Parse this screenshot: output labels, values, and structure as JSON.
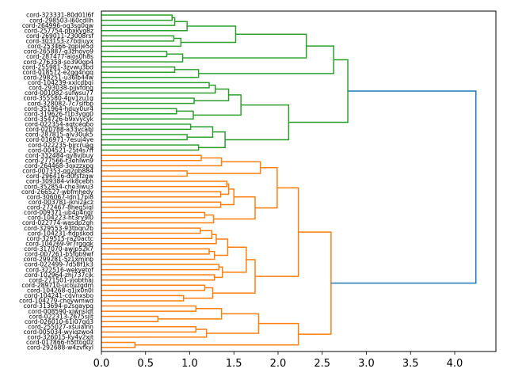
{
  "chart_data": {
    "type": "dendrogram",
    "orientation": "left",
    "title": "",
    "xlabel": "",
    "ylabel": "",
    "xlim": [
      0,
      4.47
    ],
    "x_ticks": [
      "0.0",
      "0.5",
      "1.0",
      "1.5",
      "2.0",
      "2.5",
      "3.0",
      "3.5",
      "4.0"
    ],
    "x_tick_values": [
      0,
      0.5,
      1.0,
      1.5,
      2.0,
      2.5,
      3.0,
      3.5,
      4.0
    ],
    "colors": {
      "above_threshold": "#1f77b4",
      "cluster_1": "#2ca02c",
      "cluster_2": "#ff7f0e"
    },
    "leaves": [
      "cord-323331-80d01l6f",
      "cord-298503-l60cdllh",
      "cord-264996-og3sg0qw",
      "cord-257754-pbxkyg8z",
      "cord-269011-23008rsf",
      "cord-303153-z7bdiuyx",
      "cord-253466-zgpije5d",
      "cord-265887-g3zhoyo9",
      "cord-287477-aios0h8s",
      "cord-276358-so390gp4",
      "cord-255981-3zvwu3bd",
      "cord-018572-e2gg4ngq",
      "cord-298251-u36lb44w",
      "cord-104239-xxlcdbqi",
      "cord-293038-pijvfdng",
      "cord-001082-sufwsu77",
      "cord-355580-4pv1zu1g",
      "cord-328082-7c7slfbp",
      "cord-351964-hduy0ur4",
      "cord-319626-f1b3ygg0",
      "cord-354726-b9xvycyk",
      "cord-022354-aqtceqbo",
      "cord-020788-a33vcabl",
      "cord-287815-alv30uk5",
      "cord-016971-7esuj4ye",
      "cord-022235-bircruag",
      "cord-004521-25t4s7ff",
      "cord-332484-qy8vjbuy",
      "cord-277566-t3ehlwn9",
      "cord-264468-3oxzzxpq",
      "cord-007353-qg2pb884",
      "cord-296416-d0fsfzgw",
      "cord-309384-vlk8cebh",
      "cord-352854-che3iwu3",
      "cord-266527-wbfmhedy",
      "cord-306067-ldn17pi8",
      "cord-003781-jkni2acz",
      "cord-272467-8heg5iql",
      "cord-009371-ub4p4ngr",
      "cord-104223-ht3ry9l0",
      "cord-022774-wasdp2gh",
      "cord-329553-93tbqn2b",
      "cord-104231-fidpskod",
      "cord-329515-ra20actc",
      "cord-104269-9r7rgqqk",
      "cord-317070-awjp52k7",
      "cord-007261-b5fgb9wf",
      "cord-299281-5z1xminb",
      "cord-022499-7d58f1k3",
      "cord-322516-wekyetof",
      "cord-102964-zhj737cjk",
      "cord-271501-yjobthaj",
      "cord-289710-ucouzgdm",
      "cord-104268-q1jx0n0l",
      "cord-104241-cqvnxsbo",
      "cord-104279-choywmwd",
      "cord-313694-p2sgaypq",
      "cord-008590-xjwnsldt",
      "cord-022313-2675sjlt",
      "cord-026010-61j07gq3",
      "cord-255027-xsuialnn",
      "cord-005034-wyiqzwo4",
      "cord-326015-ky4y2xjt",
      "cord-017866-h5ttog0z",
      "cord-292688-w4zvfkyl"
    ],
    "tree": {
      "h": 4.24,
      "color": "above_threshold",
      "c": [
        {
          "h": 2.79,
          "color": "cluster_1",
          "c": [
            {
              "h": 2.63,
              "c": [
                {
                  "h": 2.32,
                  "c": [
                    {
                      "h": 1.52,
                      "c": [
                        {
                          "h": 0.97,
                          "c": [
                            {
                              "h": 0.83,
                              "c": [
                                {
                                  "h": 0.8,
                                  "c": [
                                    0,
                                    1
                                  ]
                                },
                                2
                              ]
                            },
                            3
                          ]
                        },
                        {
                          "h": 0.9,
                          "c": [
                            {
                              "h": 0.82,
                              "c": [
                                4,
                                5
                              ]
                            },
                            6
                          ]
                        }
                      ]
                    },
                    {
                      "h": 0.92,
                      "c": [
                        {
                          "h": 0.74,
                          "c": [
                            7,
                            8
                          ]
                        },
                        9
                      ]
                    }
                  ]
                },
                {
                  "h": 1.1,
                  "c": [
                    {
                      "h": 0.83,
                      "c": [
                        10,
                        11
                      ]
                    },
                    12
                  ]
                }
              ]
            },
            {
              "h": 2.12,
              "c": [
                {
                  "h": 1.58,
                  "c": [
                    {
                      "h": 1.44,
                      "c": [
                        {
                          "h": 1.29,
                          "c": [
                            {
                              "h": 1.22,
                              "c": [
                                13,
                                14
                              ]
                            },
                            15
                          ]
                        },
                        {
                          "h": 1.05,
                          "c": [
                            16,
                            17
                          ]
                        }
                      ]
                    },
                    {
                      "h": 1.04,
                      "c": [
                        {
                          "h": 0.85,
                          "c": [
                            18,
                            19
                          ]
                        },
                        20
                      ]
                    }
                  ]
                },
                {
                  "h": 1.4,
                  "c": [
                    {
                      "h": 1.26,
                      "c": [
                        {
                          "h": 1.01,
                          "c": [
                            21,
                            22
                          ]
                        },
                        {
                          "h": 0.97,
                          "c": [
                            23,
                            24
                          ]
                        }
                      ]
                    },
                    {
                      "h": 1.1,
                      "c": [
                        25,
                        26
                      ]
                    }
                  ]
                }
              ]
            }
          ]
        },
        {
          "h": 2.6,
          "color": "cluster_2",
          "c": [
            {
              "h": 2.23,
              "c": [
                {
                  "h": 1.99,
                  "c": [
                    {
                      "h": 1.8,
                      "c": [
                        {
                          "h": 1.36,
                          "c": [
                            {
                              "h": 1.13,
                              "c": [
                                27,
                                28
                              ]
                            },
                            29
                          ]
                        },
                        {
                          "h": 0.97,
                          "c": [
                            30,
                            31
                          ]
                        }
                      ]
                    },
                    {
                      "h": 1.74,
                      "c": [
                        {
                          "h": 1.5,
                          "c": [
                            {
                              "h": 1.44,
                              "c": [
                                {
                                  "h": 1.42,
                                  "c": [
                                    32,
                                    33
                                  ]
                                },
                                {
                                  "h": 1.35,
                                  "c": [
                                    34,
                                    35
                                  ]
                                }
                              ]
                            },
                            {
                              "h": 1.35,
                              "c": [
                                36,
                                37
                              ]
                            }
                          ]
                        },
                        {
                          "h": 1.27,
                          "c": [
                            {
                              "h": 1.17,
                              "c": [
                                38,
                                39
                              ]
                            },
                            40
                          ]
                        }
                      ]
                    }
                  ]
                },
                {
                  "h": 1.74,
                  "c": [
                    {
                      "h": 1.64,
                      "c": [
                        {
                          "h": 1.43,
                          "c": [
                            {
                              "h": 1.3,
                              "c": [
                                {
                                  "h": 1.25,
                                  "c": [
                                    {
                                      "h": 1.12,
                                      "c": [
                                        41,
                                        42
                                      ]
                                    },
                                    43
                                  ]
                                },
                                44
                              ]
                            },
                            {
                              "h": 1.28,
                              "c": [
                                {
                                  "h": 1.22,
                                  "c": [
                                    45,
                                    46
                                  ]
                                },
                                47
                              ]
                            }
                          ]
                        },
                        {
                          "h": 1.37,
                          "c": [
                            {
                              "h": 1.33,
                              "c": [
                                48,
                                49
                              ]
                            },
                            {
                              "h": 1.28,
                              "c": [
                                50,
                                51
                              ]
                            }
                          ]
                        }
                      ]
                    },
                    {
                      "h": 1.26,
                      "c": [
                        {
                          "h": 1.17,
                          "c": [
                            52,
                            53
                          ]
                        },
                        {
                          "h": 0.93,
                          "c": [
                            54,
                            55
                          ]
                        }
                      ]
                    }
                  ]
                }
              ]
            },
            {
              "h": 2.23,
              "c": [
                {
                  "h": 1.78,
                  "c": [
                    {
                      "h": 1.36,
                      "c": [
                        {
                          "h": 1.07,
                          "c": [
                            56,
                            57
                          ]
                        },
                        {
                          "h": 0.64,
                          "c": [
                            58,
                            59
                          ]
                        }
                      ]
                    },
                    {
                      "h": 1.19,
                      "c": [
                        {
                          "h": 1.07,
                          "c": [
                            60,
                            61
                          ]
                        },
                        62
                      ]
                    }
                  ]
                },
                {
                  "h": 0.38,
                  "c": [
                    63,
                    64
                  ]
                }
              ]
            }
          ]
        }
      ]
    }
  }
}
